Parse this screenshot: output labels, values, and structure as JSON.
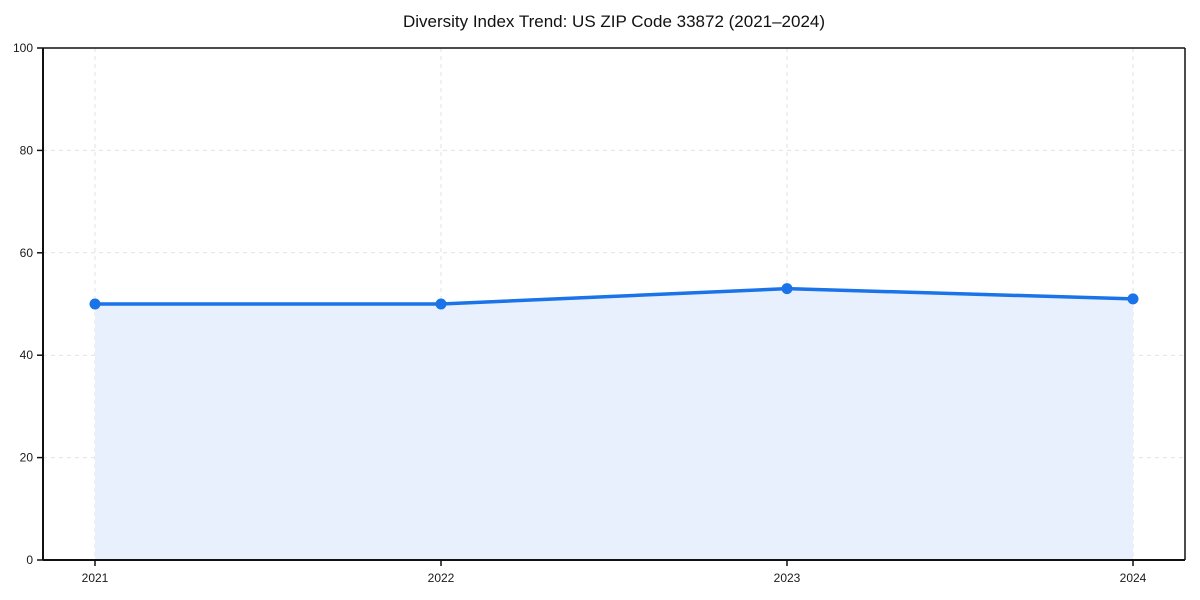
{
  "page": {
    "background": "#ffffff"
  },
  "chart_data": {
    "type": "line",
    "title": "Diversity Index Trend: US ZIP Code 33872 (2021–2024)",
    "categories": [
      "2021",
      "2022",
      "2023",
      "2024"
    ],
    "series": [
      {
        "name": "Diversity Index",
        "values": [
          50,
          50,
          53,
          51
        ]
      }
    ],
    "xlabel": "",
    "ylabel": "",
    "ylim": [
      0,
      100
    ],
    "yticks": [
      0,
      20,
      40,
      60,
      80,
      100
    ],
    "grid": true,
    "grid_style": "dashed",
    "legend_position": "none",
    "area_fill": true,
    "marker": "circle",
    "colors": {
      "line": "#1a73e8",
      "marker": "#1a73e8",
      "area": "#e8f0fd",
      "grid": "#e2e2e2",
      "axis": "#111111",
      "tick_text": "#1a1a1a",
      "title_text": "#111111",
      "background": "#ffffff"
    }
  }
}
